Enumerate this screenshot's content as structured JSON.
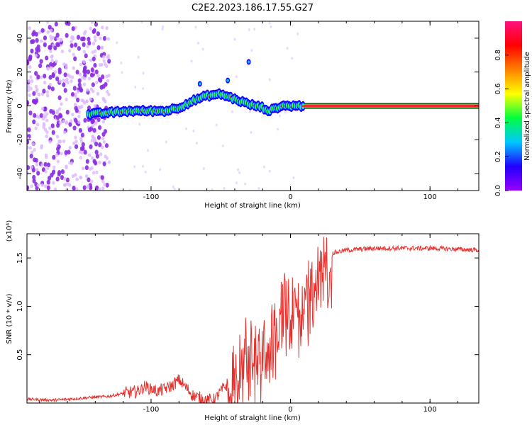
{
  "title": "C2E2.2023.186.17.55.G27",
  "chart_data": [
    {
      "type": "heatmap",
      "xlabel": "Height of straight line (km)",
      "ylabel": "Frequency (Hz)",
      "xlim": [
        -189,
        135
      ],
      "ylim": [
        -50,
        50
      ],
      "xticks": [
        -100,
        0,
        100
      ],
      "xtick_labels": [
        "-100",
        "0",
        "100"
      ],
      "yticks": [
        -40,
        -20,
        0,
        20,
        40
      ],
      "ytick_labels": [
        "-40",
        "-20",
        "0",
        "20",
        "40"
      ],
      "colorbar": {
        "label": "Normalized spectral amplitude",
        "range": [
          0,
          1
        ],
        "ticks": [
          0.0,
          0.2,
          0.4,
          0.6,
          0.8
        ],
        "tick_labels": [
          "0.0",
          "0.2",
          "0.4",
          "0.6",
          "0.8"
        ],
        "colormap": [
          "#f0c0ff",
          "#9900ff",
          "#2000ff",
          "#00c8ff",
          "#00ff40",
          "#ffff00",
          "#ff8000",
          "#ff0000",
          "#ff1080"
        ]
      },
      "ridge": {
        "x": [
          -145,
          -130,
          -115,
          -100,
          -90,
          -80,
          -70,
          -60,
          -50,
          -40,
          -30,
          -20,
          -15,
          -10,
          -5,
          0,
          5,
          10,
          135
        ],
        "y": [
          -5,
          -4,
          -3,
          -3,
          -3,
          -1,
          3,
          6,
          7,
          4,
          1,
          -1,
          -3,
          -1,
          0,
          0,
          0,
          0,
          0
        ]
      },
      "noise_region_x": [
        -189,
        -130
      ]
    },
    {
      "type": "line",
      "xlabel": "Height of straight line (km)",
      "ylabel": "SNR (10 * v/v)",
      "y_multiplier": "(x10⁴)",
      "xlim": [
        -189,
        135
      ],
      "ylim": [
        0,
        1.75
      ],
      "xticks": [
        -100,
        0,
        100
      ],
      "xtick_labels": [
        "-100",
        "0",
        "100"
      ],
      "yticks": [
        0.5,
        1.0,
        1.5
      ],
      "ytick_labels": [
        "0.5",
        "1.0",
        "1.5"
      ],
      "line_color": "#e8302c",
      "series": [
        {
          "x": [
            -189,
            -170,
            -150,
            -130,
            -120,
            -110,
            -105,
            -100,
            -95,
            -90,
            -85,
            -80,
            -75,
            -70,
            -60,
            -55,
            -50,
            -45,
            -40,
            -35,
            -30,
            -25,
            -20,
            -15,
            -10,
            -5,
            0,
            5,
            10,
            15,
            20,
            25,
            30,
            40,
            50,
            60,
            80,
            100,
            120,
            135
          ],
          "y": [
            0.04,
            0.03,
            0.05,
            0.07,
            0.1,
            0.12,
            0.17,
            0.15,
            0.12,
            0.15,
            0.18,
            0.24,
            0.16,
            0.08,
            0.03,
            0.03,
            0.12,
            0.2,
            0.35,
            0.55,
            0.65,
            0.55,
            0.6,
            0.75,
            0.95,
            1.05,
            1.15,
            1.05,
            1.2,
            1.3,
            1.4,
            1.48,
            1.55,
            1.58,
            1.59,
            1.6,
            1.6,
            1.6,
            1.59,
            1.58
          ]
        }
      ]
    }
  ]
}
